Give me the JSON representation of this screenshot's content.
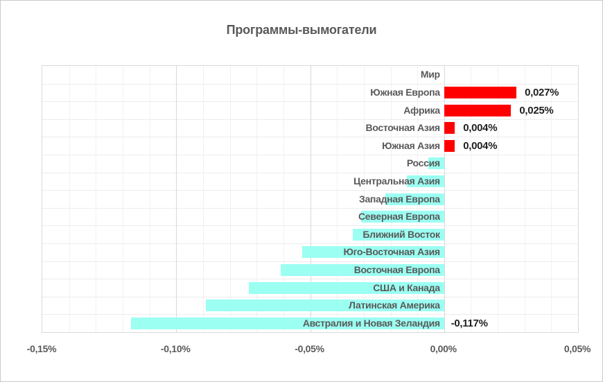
{
  "window": {
    "background": "#FFFFFF",
    "border_color": "#C9C9C9"
  },
  "chart_data": {
    "type": "bar",
    "orientation": "horizontal",
    "title": "Программы-вымогатели",
    "xlabel": "",
    "ylabel": "",
    "xlim": [
      -0.15,
      0.05
    ],
    "minor_gridline_step": 0.01,
    "major_gridline_step": 0.05,
    "grid": true,
    "legend": false,
    "x_ticks": [
      {
        "value": -0.15,
        "label": "-0,15%"
      },
      {
        "value": -0.1,
        "label": "-0,10%"
      },
      {
        "value": -0.05,
        "label": "-0,05%"
      },
      {
        "value": 0.0,
        "label": "0,00%"
      },
      {
        "value": 0.05,
        "label": "0,05%"
      }
    ],
    "colors": {
      "positive_bar": "#FF0000",
      "negative_bar": "#9BFFF2",
      "title_text": "#595959",
      "category_text": "#595959",
      "value_text": "#1F1F1F",
      "major_grid": "#D9D9D9",
      "minor_grid": "#F1F1F1",
      "row_grid": "#ECECEC",
      "plot_border": "#D9D9D9"
    },
    "rows": [
      {
        "category": "Мир",
        "value": 0.0,
        "value_label": ""
      },
      {
        "category": "Южная Европа",
        "value": 0.027,
        "value_label": "0,027%"
      },
      {
        "category": "Африка",
        "value": 0.025,
        "value_label": "0,025%"
      },
      {
        "category": "Восточная Азия",
        "value": 0.004,
        "value_label": "0,004%"
      },
      {
        "category": "Южная Азия",
        "value": 0.004,
        "value_label": "0,004%"
      },
      {
        "category": "Россия",
        "value": -0.006,
        "value_label": ""
      },
      {
        "category": "Центральная Азия",
        "value": -0.014,
        "value_label": ""
      },
      {
        "category": "Западная Европа",
        "value": -0.022,
        "value_label": ""
      },
      {
        "category": "Северная Европа",
        "value": -0.031,
        "value_label": ""
      },
      {
        "category": "Ближний Восток",
        "value": -0.034,
        "value_label": ""
      },
      {
        "category": "Юго-Восточная Азия",
        "value": -0.053,
        "value_label": ""
      },
      {
        "category": "Восточная Европа",
        "value": -0.061,
        "value_label": ""
      },
      {
        "category": "США и Канада",
        "value": -0.073,
        "value_label": ""
      },
      {
        "category": "Латинская Америка",
        "value": -0.089,
        "value_label": ""
      },
      {
        "category": "Австралия и Новая Зеландия",
        "value": -0.117,
        "value_label": "-0,117%"
      }
    ]
  }
}
